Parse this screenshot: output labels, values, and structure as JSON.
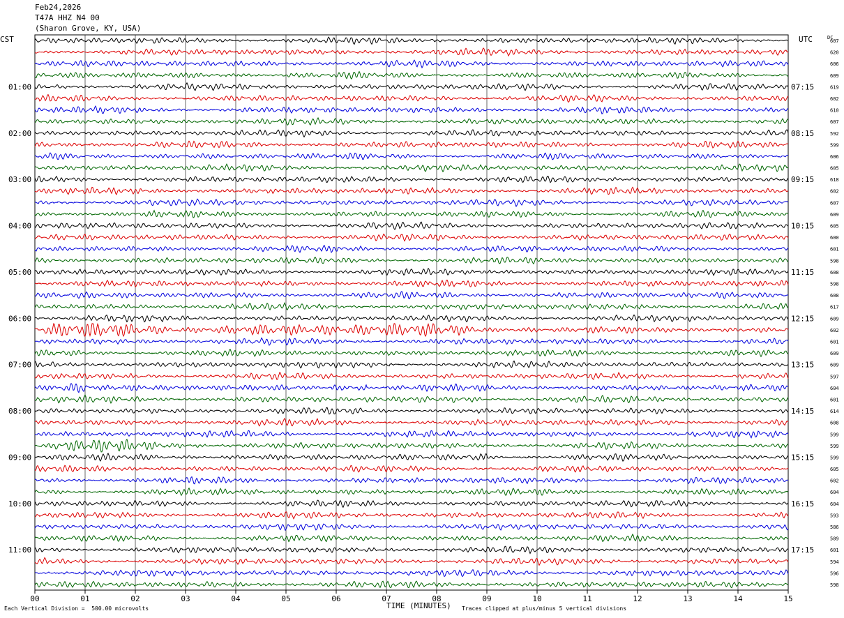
{
  "header": {
    "date": "Feb24,2026",
    "station": "T47A HHZ N4 00",
    "location": "(Sharon Grove, KY, USA)"
  },
  "left_tz": "CST",
  "right_tz": "UTC",
  "dc_header": "DC",
  "footer": {
    "scale_note": "Each Vertical Division =  500.00 microvolts",
    "clip_note": "Traces clipped at plus/minus 5 vertical divisions"
  },
  "chart_data": {
    "type": "line",
    "title": "",
    "xlabel": "TIME (MINUTES)",
    "x_ticks": [
      "00",
      "01",
      "02",
      "03",
      "04",
      "05",
      "06",
      "07",
      "08",
      "09",
      "10",
      "11",
      "12",
      "13",
      "14",
      "15"
    ],
    "xlim": [
      0,
      15
    ],
    "grid": true,
    "trace_colors": [
      "#000000",
      "#dd0000",
      "#0000dd",
      "#006600"
    ],
    "traces_per_hour": 4,
    "trace_count": 48,
    "left_hour_labels": [
      "01:00",
      "02:00",
      "03:00",
      "04:00",
      "05:00",
      "06:00",
      "07:00",
      "08:00",
      "09:00",
      "10:00",
      "11:00"
    ],
    "right_hour_labels": [
      "07:15",
      "08:15",
      "09:15",
      "10:15",
      "11:15",
      "12:15",
      "13:15",
      "14:15",
      "15:15",
      "16:15",
      "17:15"
    ],
    "dc_offsets": [
      "607",
      "620",
      "606",
      "609",
      "619",
      "602",
      "610",
      "607",
      "592",
      "599",
      "606",
      "605",
      "618",
      "602",
      "607",
      "609",
      "605",
      "600",
      "601",
      "598",
      "608",
      "598",
      "608",
      "617",
      "609",
      "602",
      "601",
      "609",
      "609",
      "597",
      "604",
      "601",
      "614",
      "608",
      "599",
      "599",
      "599",
      "605",
      "602",
      "604",
      "604",
      "593",
      "586",
      "589",
      "601",
      "594",
      "596",
      "598"
    ],
    "events": [
      {
        "trace": 25,
        "minute_start": 0.1,
        "minute_end": 10.0,
        "amplitude": 2.2
      },
      {
        "trace": 30,
        "minute_start": 0.0,
        "minute_end": 1.1,
        "amplitude": 2.6
      },
      {
        "trace": 30,
        "minute_start": 5.9,
        "minute_end": 6.6,
        "amplitude": 2.8
      },
      {
        "trace": 31,
        "minute_start": 8.3,
        "minute_end": 8.9,
        "amplitude": 1.6
      },
      {
        "trace": 35,
        "minute_start": 0.4,
        "minute_end": 3.4,
        "amplitude": 1.8
      },
      {
        "trace": 36,
        "minute_start": 8.6,
        "minute_end": 9.0,
        "amplitude": 2.4
      }
    ]
  }
}
